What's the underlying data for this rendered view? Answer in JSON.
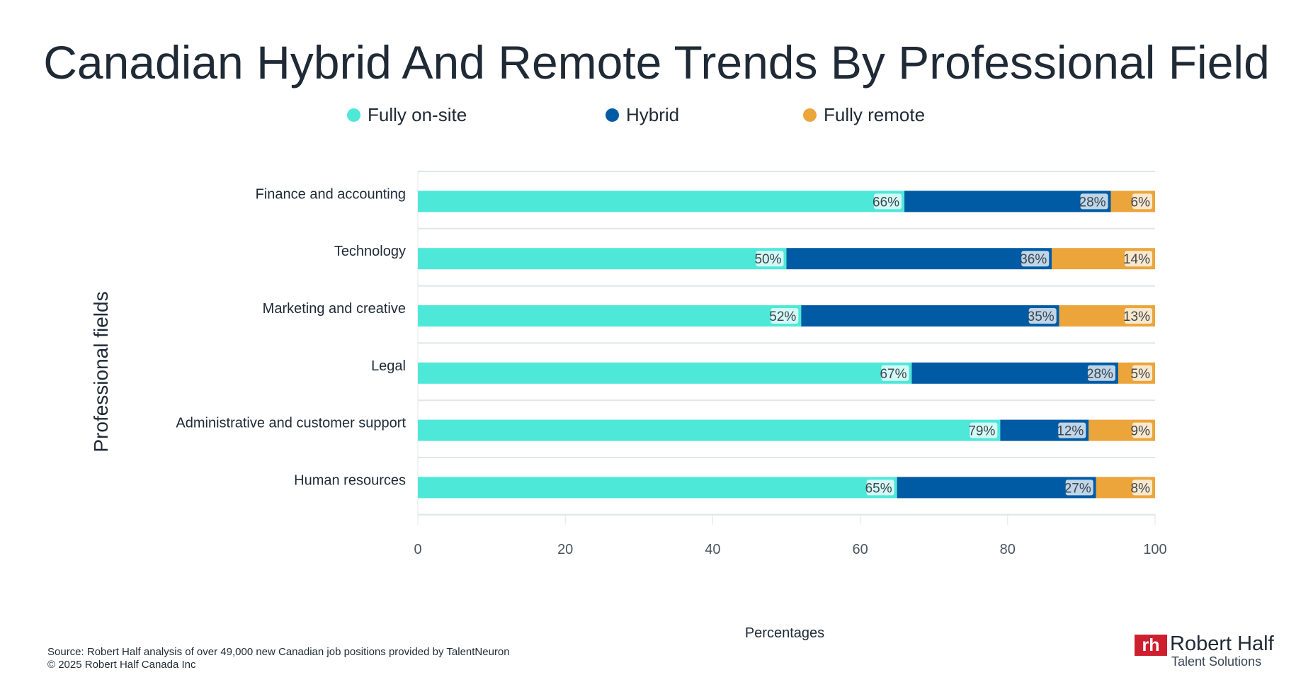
{
  "chart_data": {
    "type": "bar",
    "orientation": "horizontal",
    "stacked": true,
    "title": "Canadian Hybrid And Remote Trends By Professional Field",
    "xlabel": "Percentages",
    "ylabel": "Professional fields",
    "xlim": [
      0,
      100
    ],
    "xticks": [
      "0",
      "20",
      "40",
      "60",
      "80",
      "100"
    ],
    "grid": "horizontal separators between categories",
    "legend": "top",
    "categories": [
      "Finance and accounting",
      "Technology",
      "Marketing and creative",
      "Legal",
      "Administrative and customer support",
      "Human resources"
    ],
    "series": [
      {
        "name": "Fully on-site",
        "color": "#4de8d8",
        "values": [
          66,
          50,
          52,
          67,
          79,
          65
        ],
        "labels": [
          "66%",
          "50%",
          "52%",
          "67%",
          "79%",
          "65%"
        ]
      },
      {
        "name": "Hybrid",
        "color": "#005ba4",
        "values": [
          28,
          36,
          35,
          28,
          12,
          27
        ],
        "labels": [
          "28%",
          "36%",
          "35%",
          "28%",
          "12%",
          "27%"
        ]
      },
      {
        "name": "Fully remote",
        "color": "#eba53b",
        "values": [
          6,
          14,
          13,
          5,
          9,
          8
        ],
        "labels": [
          "6%",
          "14%",
          "13%",
          "5%",
          "9%",
          "8%"
        ]
      }
    ]
  },
  "footer": {
    "source": "Source: Robert Half analysis of over 49,000 new Canadian job positions provided by TalentNeuron",
    "copyright": "© 2025 Robert Half Canada Inc"
  },
  "logo": {
    "mark": "rh",
    "name": "Robert Half",
    "sub": "Talent Solutions"
  }
}
